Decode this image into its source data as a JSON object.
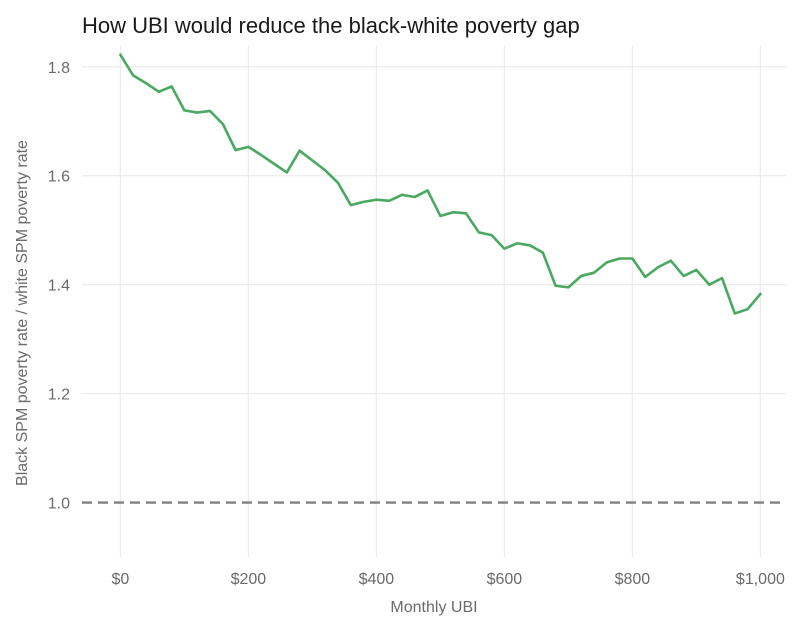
{
  "chart_data": {
    "type": "line",
    "title": "How UBI would reduce the black-white poverty gap",
    "xlabel": "Monthly UBI",
    "ylabel": "Black SPM poverty rate / white SPM poverty rate",
    "xlim": [
      -60,
      1040
    ],
    "ylim": [
      0.9,
      1.84
    ],
    "x_ticks": [
      0,
      200,
      400,
      600,
      800,
      1000
    ],
    "x_tick_labels": [
      "$0",
      "$200",
      "$400",
      "$600",
      "$800",
      "$1,000"
    ],
    "y_ticks": [
      1.0,
      1.2,
      1.4,
      1.6,
      1.8
    ],
    "y_tick_labels": [
      "1.0",
      "1.2",
      "1.4",
      "1.6",
      "1.8"
    ],
    "grid": true,
    "reference_line": {
      "y": 1.0,
      "style": "dashed",
      "color": "#808080"
    },
    "series": [
      {
        "color": "#4aa860",
        "x": [
          0,
          20,
          40,
          60,
          80,
          100,
          120,
          140,
          160,
          180,
          200,
          220,
          240,
          260,
          280,
          300,
          320,
          340,
          360,
          380,
          400,
          420,
          440,
          460,
          480,
          500,
          520,
          540,
          560,
          580,
          600,
          620,
          640,
          660,
          680,
          700,
          720,
          740,
          760,
          780,
          800,
          820,
          840,
          860,
          880,
          900,
          920,
          940,
          960,
          980,
          1000
        ],
        "values": [
          1.822,
          1.784,
          1.77,
          1.754,
          1.764,
          1.72,
          1.716,
          1.719,
          1.695,
          1.647,
          1.653,
          1.638,
          1.622,
          1.606,
          1.646,
          1.628,
          1.61,
          1.587,
          1.546,
          1.552,
          1.556,
          1.554,
          1.565,
          1.561,
          1.573,
          1.526,
          1.533,
          1.531,
          1.496,
          1.491,
          1.466,
          1.476,
          1.472,
          1.459,
          1.398,
          1.395,
          1.416,
          1.422,
          1.441,
          1.448,
          1.448,
          1.414,
          1.432,
          1.444,
          1.416,
          1.427,
          1.4,
          1.412,
          1.347,
          1.355,
          1.383
        ]
      }
    ]
  }
}
